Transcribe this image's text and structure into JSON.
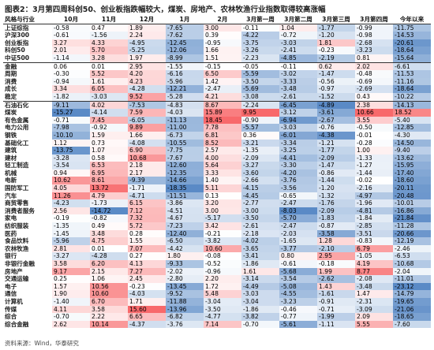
{
  "title": "图表2：3月第四周科创50、创业板指跌幅较大，煤炭、房地产、农林牧渔行业指数取得较高涨幅",
  "table": {
    "header": [
      "风格与行业",
      "10月",
      "11月",
      "12月",
      "1月",
      "2月",
      "3月第一周",
      "3月第二周",
      "3月第三周",
      "3月第四周",
      "今年以来"
    ],
    "sections": [
      [
        [
          "上证综指",
          "-0.58",
          "0.47",
          "1.89",
          "-7.65",
          "3.00",
          "-0.11",
          "1.04",
          "-1.77",
          "-0.99",
          "-11.75"
        ],
        [
          "沪深300",
          "-0.61",
          "-1.56",
          "2.24",
          "-7.62",
          "0.39",
          "-4.22",
          "-0.72",
          "-1.20",
          "-0.98",
          "-14.53"
        ],
        [
          "创业板指",
          "3.27",
          "4.33",
          "-4.95",
          "-12.45",
          "-0.95",
          "-3.75",
          "-3.03",
          "1.81",
          "-2.68",
          "-20.61"
        ],
        [
          "科创50",
          "2.01",
          "5.70",
          "-5.25",
          "-12.06",
          "1.66",
          "-3.26",
          "-2.41",
          "-0.23",
          "-3.23",
          "-18.64"
        ],
        [
          "中证500",
          "-1.14",
          "3.28",
          "1.97",
          "-8.99",
          "1.51",
          "-2.23",
          "-4.85",
          "-2.19",
          "0.81",
          "-15.64"
        ]
      ],
      [
        [
          "金融",
          "0.06",
          "0.01",
          "2.95",
          "-1.55",
          "-0.15",
          "-0.05",
          "-0.11",
          "0.62",
          "2.02",
          "-6.61"
        ],
        [
          "周期",
          "-0.30",
          "5.52",
          "4.20",
          "-6.16",
          "6.50",
          "-5.59",
          "-3.02",
          "-1.47",
          "-0.48",
          "-11.53"
        ],
        [
          "消费",
          "-0.94",
          "1.61",
          "4.23",
          "-5.96",
          "1.42",
          "-3.50",
          "-3.33",
          "-0.56",
          "-0.69",
          "-11.16"
        ],
        [
          "成长",
          "3.34",
          "6.05",
          "-4.28",
          "-12.21",
          "-2.47",
          "-5.69",
          "-3.48",
          "-0.97",
          "-2.69",
          "-18.64"
        ],
        [
          "稳定",
          "-1.82",
          "-3.03",
          "9.52",
          "-5.28",
          "4.21",
          "-3.08",
          "-2.61",
          "-1.52",
          "0.43",
          "-10.22"
        ]
      ],
      [
        [
          "石油石化",
          "-9.11",
          "4.02",
          "-7.53",
          "-4.83",
          "8.67",
          "-2.24",
          "-6.45",
          "-4.89",
          "2.38",
          "-14.13"
        ],
        [
          "煤炭",
          "-15.27",
          "-4.14",
          "7.59",
          "-4.03",
          "15.89",
          "9.95",
          "-3.12",
          "-3.61",
          "10.66",
          "18.52"
        ],
        [
          "有色金属",
          "-0.71",
          "7.45",
          "-6.05",
          "-11.13",
          "18.45",
          "-0.90",
          "-6.94",
          "-2.67",
          "3.55",
          "-5.40"
        ],
        [
          "电力公用",
          "-7.98",
          "-0.92",
          "9.89",
          "-11.00",
          "7.78",
          "-5.57",
          "-3.03",
          "-0.76",
          "-0.50",
          "-12.85"
        ],
        [
          "钢铁",
          "-10.10",
          "1.59",
          "1.66",
          "-6.73",
          "6.81",
          "0.36",
          "-6.01",
          "-4.38",
          "-0.01",
          "-4.30"
        ],
        [
          "基础化工",
          "1.12",
          "0.73",
          "-4.08",
          "-10.55",
          "8.52",
          "-3.21",
          "-3.34",
          "-1.21",
          "-0.28",
          "-14.50"
        ],
        [
          "建筑",
          "-13.75",
          "1.07",
          "6.90",
          "-7.75",
          "2.57",
          "-1.35",
          "-3.25",
          "-1.77",
          "1.00",
          "-9.40"
        ],
        [
          "建材",
          "-3.28",
          "0.58",
          "10.68",
          "-7.67",
          "4.00",
          "-2.09",
          "-4.41",
          "-2.09",
          "-1.33",
          "-13.62"
        ],
        [
          "轻工制造",
          "-3.54",
          "6.53",
          "2.18",
          "-12.60",
          "5.64",
          "-3.27",
          "-3.30",
          "-1.47",
          "-1.27",
          "-15.95"
        ],
        [
          "机械",
          "0.94",
          "6.95",
          "2.17",
          "-12.35",
          "3.33",
          "-3.60",
          "-4.20",
          "-0.86",
          "-1.44",
          "-17.40"
        ],
        [
          "电新",
          "10.62",
          "8.61",
          "-9.39",
          "-14.66",
          "1.40",
          "-2.66",
          "-3.76",
          "-1.44",
          "-0.02",
          "-18.60"
        ],
        [
          "国防军工",
          "4.05",
          "13.72",
          "-1.71",
          "-18.35",
          "5.11",
          "-4.15",
          "-3.56",
          "-1.20",
          "-2.16",
          "-20.11"
        ],
        [
          "汽车",
          "11.26",
          "4.79",
          "-4.71",
          "-11.51",
          "0.13",
          "-4.45",
          "-0.65",
          "-1.32",
          "-4.97",
          "-20.48"
        ],
        [
          "商贸零售",
          "-4.23",
          "-1.73",
          "6.15",
          "-3.86",
          "3.20",
          "-2.77",
          "-2.47",
          "-1.76",
          "-1.96",
          "-10.01"
        ],
        [
          "消费者服务",
          "2.56",
          "-14.72",
          "7.12",
          "-4.51",
          "3.00",
          "-3.00",
          "-8.03",
          "-2.09",
          "-4.81",
          "-16.86"
        ],
        [
          "家电",
          "-0.19",
          "-0.82",
          "7.32",
          "-4.67",
          "-5.17",
          "-3.50",
          "-5.70",
          "-1.83",
          "-1.84",
          "-21.84"
        ],
        [
          "纺织服装",
          "-1.35",
          "0.49",
          "5.72",
          "-7.23",
          "3.42",
          "-2.61",
          "-2.47",
          "-0.87",
          "-2.85",
          "-11.28"
        ],
        [
          "医药",
          "-1.45",
          "3.48",
          "0.28",
          "-12.40",
          "-0.21",
          "-2.18",
          "-2.03",
          "-3.58",
          "-3.51",
          "-20.66"
        ],
        [
          "食品饮料",
          "-5.96",
          "4.75",
          "1.55",
          "-6.50",
          "-3.82",
          "-4.02",
          "-1.65",
          "1.28",
          "-0.83",
          "-12.19"
        ],
        [
          "农林牧渔",
          "2.81",
          "0.01",
          "7.07",
          "-4.42",
          "10.60",
          "-3.65",
          "-3.77",
          "-2.10",
          "6.79",
          "-2.46"
        ],
        [
          "银行",
          "-3.27",
          "-4.28",
          "0.27",
          "1.80",
          "-0.08",
          "-3.41",
          "0.80",
          "2.95",
          "-1.05",
          "-6.53"
        ],
        [
          "非银行金融",
          "3.58",
          "6.20",
          "4.13",
          "-9.33",
          "-0.52",
          "-1.86",
          "-0.61",
          "-0.18",
          "4.19",
          "-10.68"
        ],
        [
          "房地产",
          "9.17",
          "2.15",
          "7.27",
          "-2.02",
          "-0.96",
          "1.61",
          "-5.68",
          "1.99",
          "8.77",
          "-2.04"
        ],
        [
          "交通运输",
          "0.25",
          "1.06",
          "2.45",
          "-2.80",
          "2.20",
          "-3.14",
          "-3.54",
          "-2.62",
          "-2.08",
          "-11.01"
        ],
        [
          "电子",
          "1.57",
          "10.56",
          "-0.23",
          "-13.45",
          "1.72",
          "-4.49",
          "-5.08",
          "1.43",
          "-3.48",
          "-23.12"
        ],
        [
          "通信",
          "1.90",
          "10.60",
          "-4.03",
          "-9.52",
          "5.48",
          "-3.03",
          "-4.55",
          "-1.61",
          "1.47",
          "-14.79"
        ],
        [
          "计算机",
          "-1.40",
          "6.70",
          "1.71",
          "-11.88",
          "-3.04",
          "-3.04",
          "-3.23",
          "-0.91",
          "-2.31",
          "-19.65"
        ],
        [
          "传媒",
          "4.11",
          "3.58",
          "15.60",
          "-13.96",
          "-3.50",
          "-1.86",
          "-0.46",
          "-0.71",
          "-3.09",
          "-21.06"
        ],
        [
          "综合",
          "-0.70",
          "2.22",
          "6.65",
          "-6.82",
          "-4.77",
          "-3.82",
          "-0.77",
          "-1.99",
          "2.09",
          "-18.65"
        ],
        [
          "综合金融",
          "2.62",
          "10.14",
          "-4.37",
          "-3.76",
          "7.14",
          "-0.70",
          "-5.61",
          "-1.11",
          "5.55",
          "-7.60"
        ]
      ]
    ]
  },
  "source": "资料来源：Wind，华泰研究"
}
